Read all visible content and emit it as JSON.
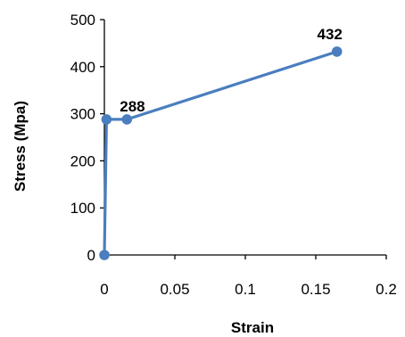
{
  "chart_data": {
    "type": "line",
    "title": "",
    "xlabel": "Strain",
    "ylabel": "Stress (Mpa)",
    "xlim": [
      0,
      0.2
    ],
    "ylim": [
      0,
      500
    ],
    "xticks": [
      0,
      0.05,
      0.1,
      0.15,
      0.2
    ],
    "xtick_labels": [
      "0",
      "0.05",
      "0.1",
      "0.15",
      "0.2"
    ],
    "yticks": [
      0,
      100,
      200,
      300,
      400,
      500
    ],
    "ytick_labels": [
      "0",
      "100",
      "200",
      "300",
      "400",
      "500"
    ],
    "grid": false,
    "legend": "none",
    "series": [
      {
        "color": "#4a7ebf",
        "x": [
          0,
          0.0015,
          0.016,
          0.165
        ],
        "y": [
          0,
          288,
          288,
          432
        ]
      }
    ],
    "annotations": [
      {
        "text": "288",
        "x": 0.016,
        "y": 288
      },
      {
        "text": "432",
        "x": 0.165,
        "y": 432
      }
    ]
  }
}
